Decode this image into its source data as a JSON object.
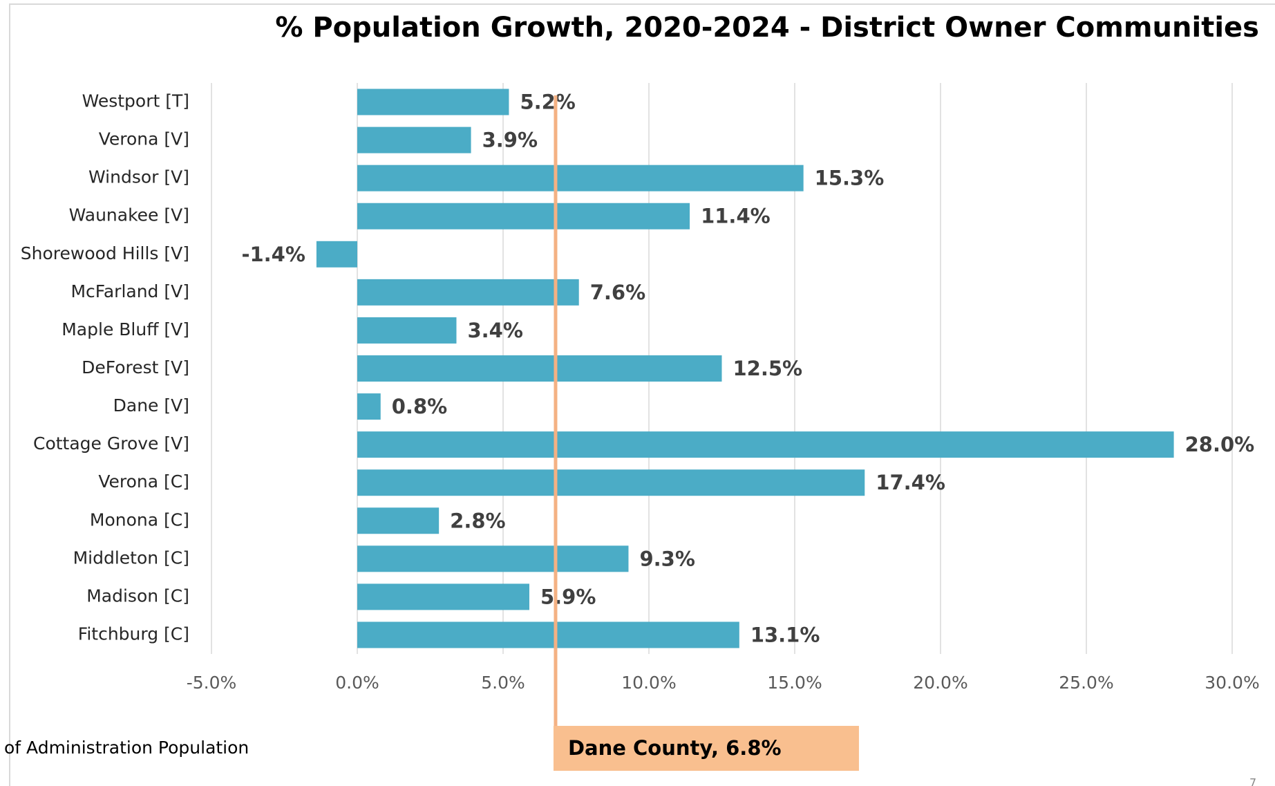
{
  "chart_data": {
    "type": "bar",
    "orientation": "horizontal",
    "title": "% Population Growth, 2020-2024 - District Owner Communities",
    "categories": [
      "Westport [T]",
      "Verona [V]",
      "Windsor [V]",
      "Waunakee [V]",
      "Shorewood Hills [V]",
      "McFarland [V]",
      "Maple Bluff [V]",
      "DeForest [V]",
      "Dane [V]",
      "Cottage Grove [V]",
      "Verona [C]",
      "Monona [C]",
      "Middleton [C]",
      "Madison [C]",
      "Fitchburg [C]"
    ],
    "values": [
      5.2,
      3.9,
      15.3,
      11.4,
      -1.4,
      7.6,
      3.4,
      12.5,
      0.8,
      28.0,
      17.4,
      2.8,
      9.3,
      5.9,
      13.1
    ],
    "value_labels": [
      "5.2%",
      "3.9%",
      "15.3%",
      "11.4%",
      "-1.4%",
      "7.6%",
      "3.4%",
      "12.5%",
      "0.8%",
      "28.0%",
      "17.4%",
      "2.8%",
      "9.3%",
      "5.9%",
      "13.1%"
    ],
    "color": "#4bacc6",
    "xlim": [
      -5,
      30
    ],
    "xticks": [
      {
        "value": -5,
        "label": "-5.0%"
      },
      {
        "value": 0,
        "label": "0.0%"
      },
      {
        "value": 5,
        "label": "5.0%"
      },
      {
        "value": 10,
        "label": "10.0%"
      },
      {
        "value": 15,
        "label": "15.0%"
      },
      {
        "value": 20,
        "label": "20.0%"
      },
      {
        "value": 25,
        "label": "25.0%"
      },
      {
        "value": 30,
        "label": "30.0%"
      }
    ],
    "grid": true,
    "reference_line": {
      "value": 6.8,
      "label": "Dane County, 6.8%",
      "color": "#f4b183",
      "box_color": "#f9bf8f"
    },
    "footnote": "of Administration Population",
    "page_number": "7"
  }
}
